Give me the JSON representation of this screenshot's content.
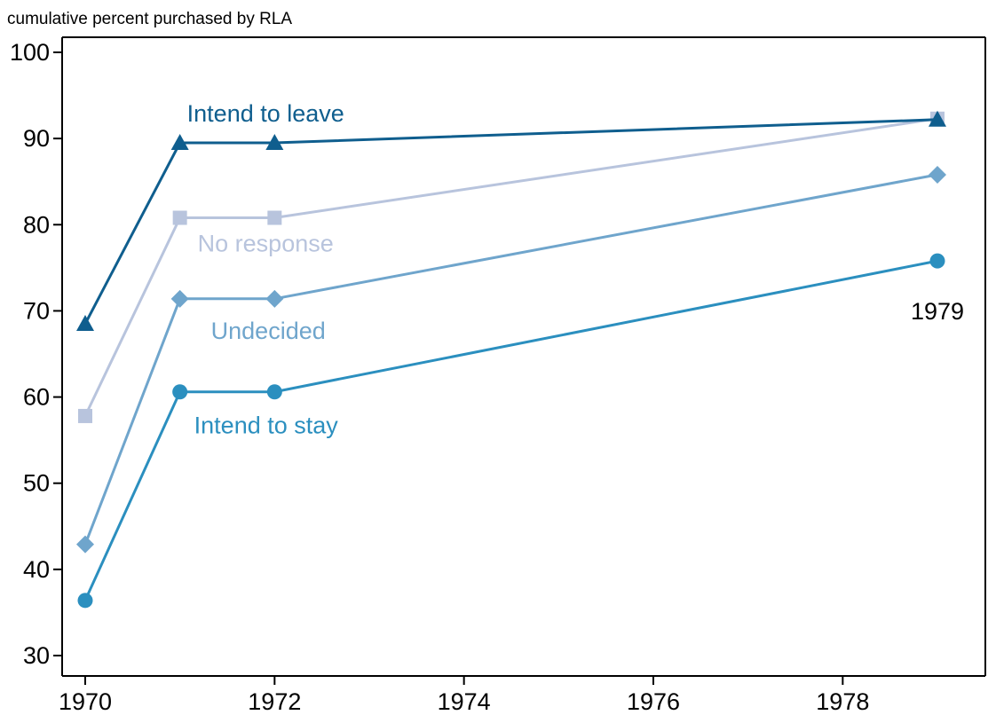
{
  "chart_data": {
    "type": "line",
    "title": "",
    "ylabel": "cumulative percent purchased by RLA",
    "xlabel": "",
    "x_ticks": [
      1970,
      1972,
      1974,
      1976,
      1978
    ],
    "y_ticks": [
      30,
      40,
      50,
      60,
      70,
      80,
      90,
      100
    ],
    "xlim": [
      1970,
      1979.6
    ],
    "ylim": [
      28,
      102
    ],
    "grid": false,
    "legend": "none",
    "series": [
      {
        "name": "Intend to leave",
        "marker": "triangle",
        "color": "#0f5e8e",
        "x": [
          1970,
          1971,
          1972,
          1979
        ],
        "y": [
          68.5,
          89.5,
          89.5,
          92.2
        ]
      },
      {
        "name": "No response",
        "marker": "square",
        "color": "#b8c4dd",
        "x": [
          1970,
          1971,
          1972,
          1979
        ],
        "y": [
          57.8,
          80.8,
          80.8,
          92.3
        ]
      },
      {
        "name": "Undecided",
        "marker": "diamond",
        "color": "#6fa5cc",
        "x": [
          1970,
          1971,
          1972,
          1979
        ],
        "y": [
          42.9,
          71.4,
          71.4,
          85.8
        ]
      },
      {
        "name": "Intend to stay",
        "marker": "circle",
        "color": "#2b8fbf",
        "x": [
          1970,
          1971,
          1972,
          1979
        ],
        "y": [
          36.4,
          60.6,
          60.6,
          75.8
        ]
      }
    ],
    "annotations": [
      {
        "text": "1979",
        "x": 1979,
        "y": 69
      }
    ]
  }
}
